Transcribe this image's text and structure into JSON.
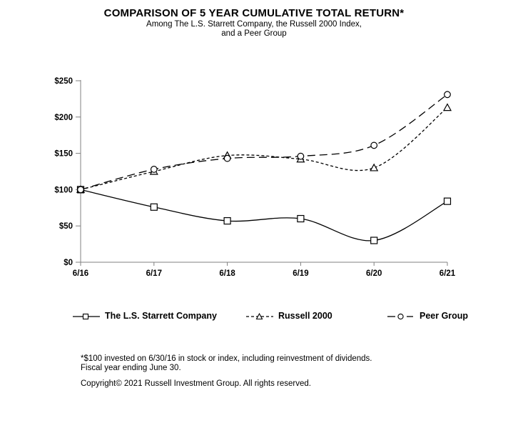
{
  "title": "COMPARISON OF 5 YEAR CUMULATIVE TOTAL RETURN*",
  "subtitle_line1": "Among The L.S. Starrett Company, the Russell 2000 Index,",
  "subtitle_line2": "and a Peer Group",
  "chart_data": {
    "type": "line",
    "x": [
      "6/16",
      "6/17",
      "6/18",
      "6/19",
      "6/20",
      "6/21"
    ],
    "series": [
      {
        "name": "The L.S. Starrett Company",
        "values": [
          100,
          76,
          57,
          60,
          30,
          84
        ],
        "line": "solid",
        "marker": "square"
      },
      {
        "name": "Russell 2000",
        "values": [
          100,
          125,
          147,
          142,
          130,
          213
        ],
        "line": "dotted",
        "marker": "triangle"
      },
      {
        "name": "Peer Group",
        "values": [
          100,
          128,
          143,
          146,
          161,
          231
        ],
        "line": "dashed",
        "marker": "circle"
      }
    ],
    "ylim": [
      0,
      250
    ],
    "ytick_step": 50,
    "ytick_labels": [
      "$0",
      "$50",
      "$100",
      "$150",
      "$200",
      "$250"
    ],
    "grid": false,
    "legend_position": "bottom",
    "line_color": "#000000",
    "axis_color": "#808080",
    "background": "#ffffff"
  },
  "footnotes": {
    "line1": "*$100 invested on 6/30/16 in stock or index, including reinvestment of dividends.",
    "line2": "Fiscal year ending June 30.",
    "copyright": "Copyright© 2021 Russell Investment Group. All rights reserved."
  }
}
